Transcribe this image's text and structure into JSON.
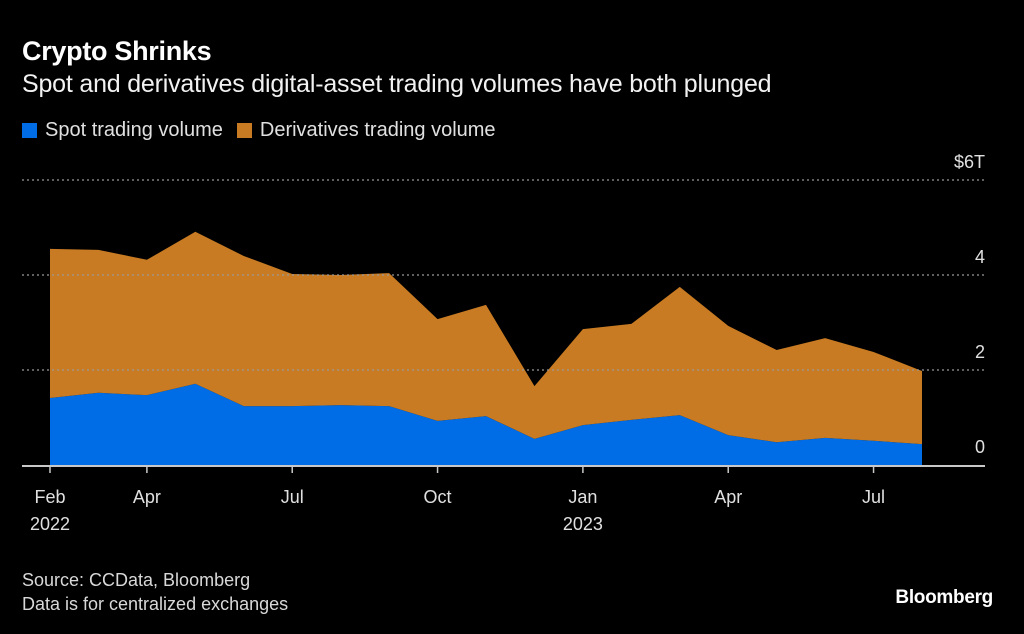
{
  "header": {
    "title": "Crypto Shrinks",
    "subtitle": "Spot and derivatives digital-asset trading volumes have both plunged"
  },
  "footer": {
    "source": "Source: CCData, Bloomberg",
    "note": "Data is for centralized exchanges",
    "brand": "Bloomberg"
  },
  "chart_data": {
    "type": "area",
    "stacked": true,
    "title": "Crypto Shrinks",
    "subtitle": "Spot and derivatives digital-asset trading volumes have both plunged",
    "xlabel": "",
    "ylabel": "",
    "ylim": [
      0,
      6
    ],
    "y_unit": "$T",
    "y_ticks": [
      {
        "value": 6,
        "label": "$6T"
      },
      {
        "value": 4,
        "label": "4"
      },
      {
        "value": 2,
        "label": "2"
      },
      {
        "value": 0,
        "label": "0"
      }
    ],
    "x": [
      "2022-02",
      "2022-03",
      "2022-04",
      "2022-05",
      "2022-06",
      "2022-07",
      "2022-08",
      "2022-09",
      "2022-10",
      "2022-11",
      "2022-12",
      "2023-01",
      "2023-02",
      "2023-03",
      "2023-04",
      "2023-05",
      "2023-06",
      "2023-07",
      "2023-08"
    ],
    "x_ticks": [
      {
        "index": 0,
        "label": "Feb",
        "sublabel": "2022"
      },
      {
        "index": 2,
        "label": "Apr",
        "sublabel": ""
      },
      {
        "index": 5,
        "label": "Jul",
        "sublabel": ""
      },
      {
        "index": 8,
        "label": "Oct",
        "sublabel": ""
      },
      {
        "index": 11,
        "label": "Jan",
        "sublabel": "2023"
      },
      {
        "index": 14,
        "label": "Apr",
        "sublabel": ""
      },
      {
        "index": 17,
        "label": "Jul",
        "sublabel": ""
      }
    ],
    "series": [
      {
        "name": "Spot trading volume",
        "color": "#006ce5",
        "values": [
          1.41,
          1.52,
          1.47,
          1.71,
          1.24,
          1.24,
          1.26,
          1.24,
          0.93,
          1.03,
          0.55,
          0.84,
          0.95,
          1.05,
          0.63,
          0.48,
          0.57,
          0.51,
          0.44
        ]
      },
      {
        "name": "Derivatives trading volume",
        "color": "#c87b22",
        "values": [
          3.14,
          3.01,
          2.85,
          3.2,
          3.16,
          2.78,
          2.74,
          2.8,
          2.14,
          2.34,
          1.11,
          2.02,
          2.02,
          2.7,
          2.3,
          1.94,
          2.1,
          1.87,
          1.54
        ]
      }
    ],
    "grid": true,
    "legend": "top-left"
  }
}
